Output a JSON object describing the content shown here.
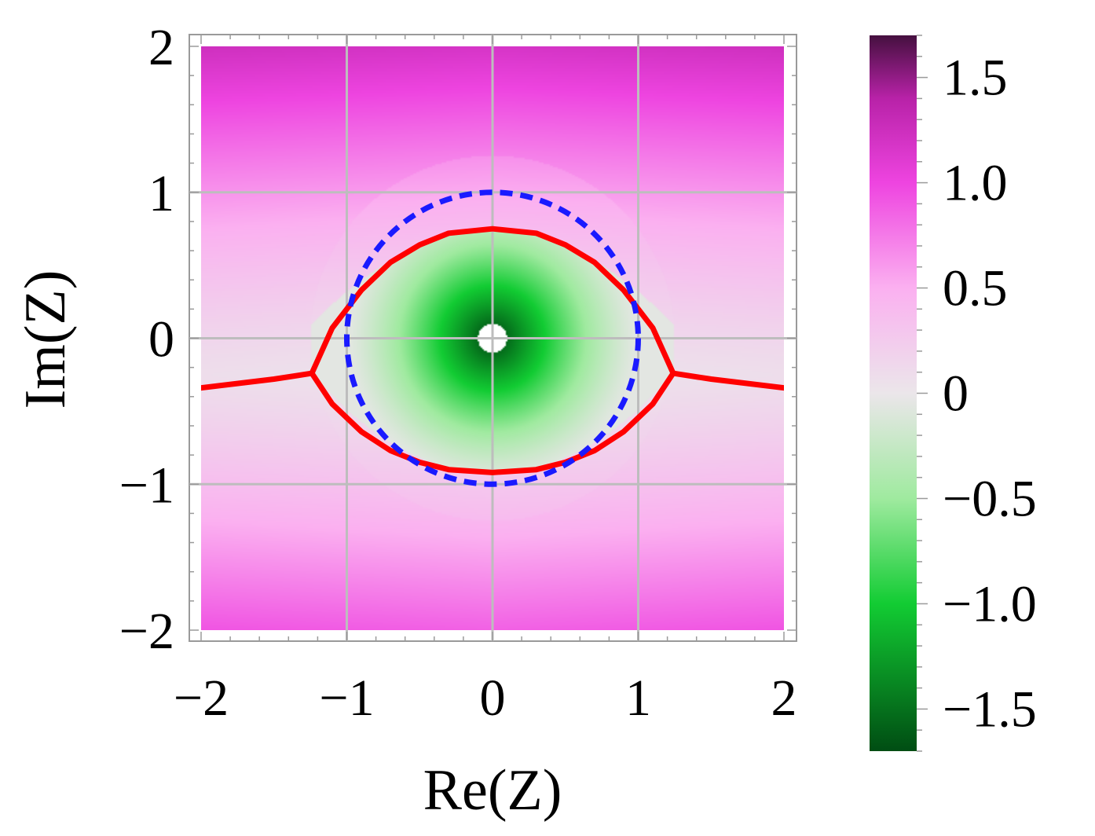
{
  "chart_data": {
    "type": "heatmap",
    "title": "",
    "xlabel": "Re(Z)",
    "ylabel": "Im(Z)",
    "xlim": [
      -2,
      2
    ],
    "ylim": [
      -2,
      2
    ],
    "grid": true,
    "x_ticks": [
      {
        "value": -2,
        "label": "−2"
      },
      {
        "value": -1,
        "label": "−1"
      },
      {
        "value": 0,
        "label": "0"
      },
      {
        "value": 1,
        "label": "1"
      },
      {
        "value": 2,
        "label": "2"
      }
    ],
    "y_ticks": [
      {
        "value": -2,
        "label": "−2"
      },
      {
        "value": -1,
        "label": "−1"
      },
      {
        "value": 0,
        "label": "0"
      },
      {
        "value": 1,
        "label": "1"
      },
      {
        "value": 2,
        "label": "2"
      }
    ],
    "colorbar": {
      "range": [
        -1.7,
        1.7
      ],
      "colormap": [
        {
          "value": -1.7,
          "color": "#004d13"
        },
        {
          "value": -1.0,
          "color": "#12cc33"
        },
        {
          "value": -0.5,
          "color": "#9fea9f"
        },
        {
          "value": 0.0,
          "color": "#ebe6ea"
        },
        {
          "value": 0.5,
          "color": "#fbb0f0"
        },
        {
          "value": 1.0,
          "color": "#ee44e0"
        },
        {
          "value": 1.4,
          "color": "#b822a8"
        },
        {
          "value": 1.7,
          "color": "#45103f"
        }
      ],
      "ticks": [
        {
          "value": 1.5,
          "label": "1.5"
        },
        {
          "value": 1.0,
          "label": "1.0"
        },
        {
          "value": 0.5,
          "label": "0.5"
        },
        {
          "value": 0,
          "label": "0"
        },
        {
          "value": -0.5,
          "label": "−0.5"
        },
        {
          "value": -1.0,
          "label": "−1.0"
        },
        {
          "value": -1.5,
          "label": "−1.5"
        }
      ]
    },
    "field": {
      "outer_pink_min_at_y": -0.25,
      "center_green_value": -1.7,
      "hole_center": [
        0,
        0
      ],
      "hole_radius": 0.1
    },
    "series": [
      {
        "style": "solid",
        "color": "#ff0000",
        "x": [
          -2.0,
          -1.5,
          -1.24
        ],
        "y": [
          -0.34,
          -0.28,
          -0.24
        ]
      },
      {
        "style": "solid",
        "color": "#ff0000",
        "x": [
          1.24,
          1.5,
          2.0
        ],
        "y": [
          -0.24,
          -0.28,
          -0.34
        ]
      },
      {
        "style": "solid",
        "color": "#ff0000",
        "x": [
          -1.24,
          -1.1,
          -0.9,
          -0.7,
          -0.5,
          -0.3,
          0.0,
          0.3,
          0.5,
          0.7,
          0.9,
          1.1,
          1.24
        ],
        "y": [
          -0.24,
          0.07,
          0.33,
          0.52,
          0.64,
          0.72,
          0.75,
          0.72,
          0.64,
          0.52,
          0.33,
          0.07,
          -0.24
        ]
      },
      {
        "style": "solid",
        "color": "#ff0000",
        "x": [
          -1.24,
          -1.1,
          -0.9,
          -0.7,
          -0.5,
          -0.3,
          0.0,
          0.3,
          0.5,
          0.7,
          0.9,
          1.1,
          1.24
        ],
        "y": [
          -0.24,
          -0.45,
          -0.64,
          -0.77,
          -0.85,
          -0.9,
          -0.92,
          -0.9,
          -0.85,
          -0.77,
          -0.64,
          -0.45,
          -0.24
        ]
      },
      {
        "style": "dashed",
        "color": "#1a1aff",
        "shape": "circle",
        "center": [
          0,
          0
        ],
        "radius": 1
      }
    ]
  }
}
